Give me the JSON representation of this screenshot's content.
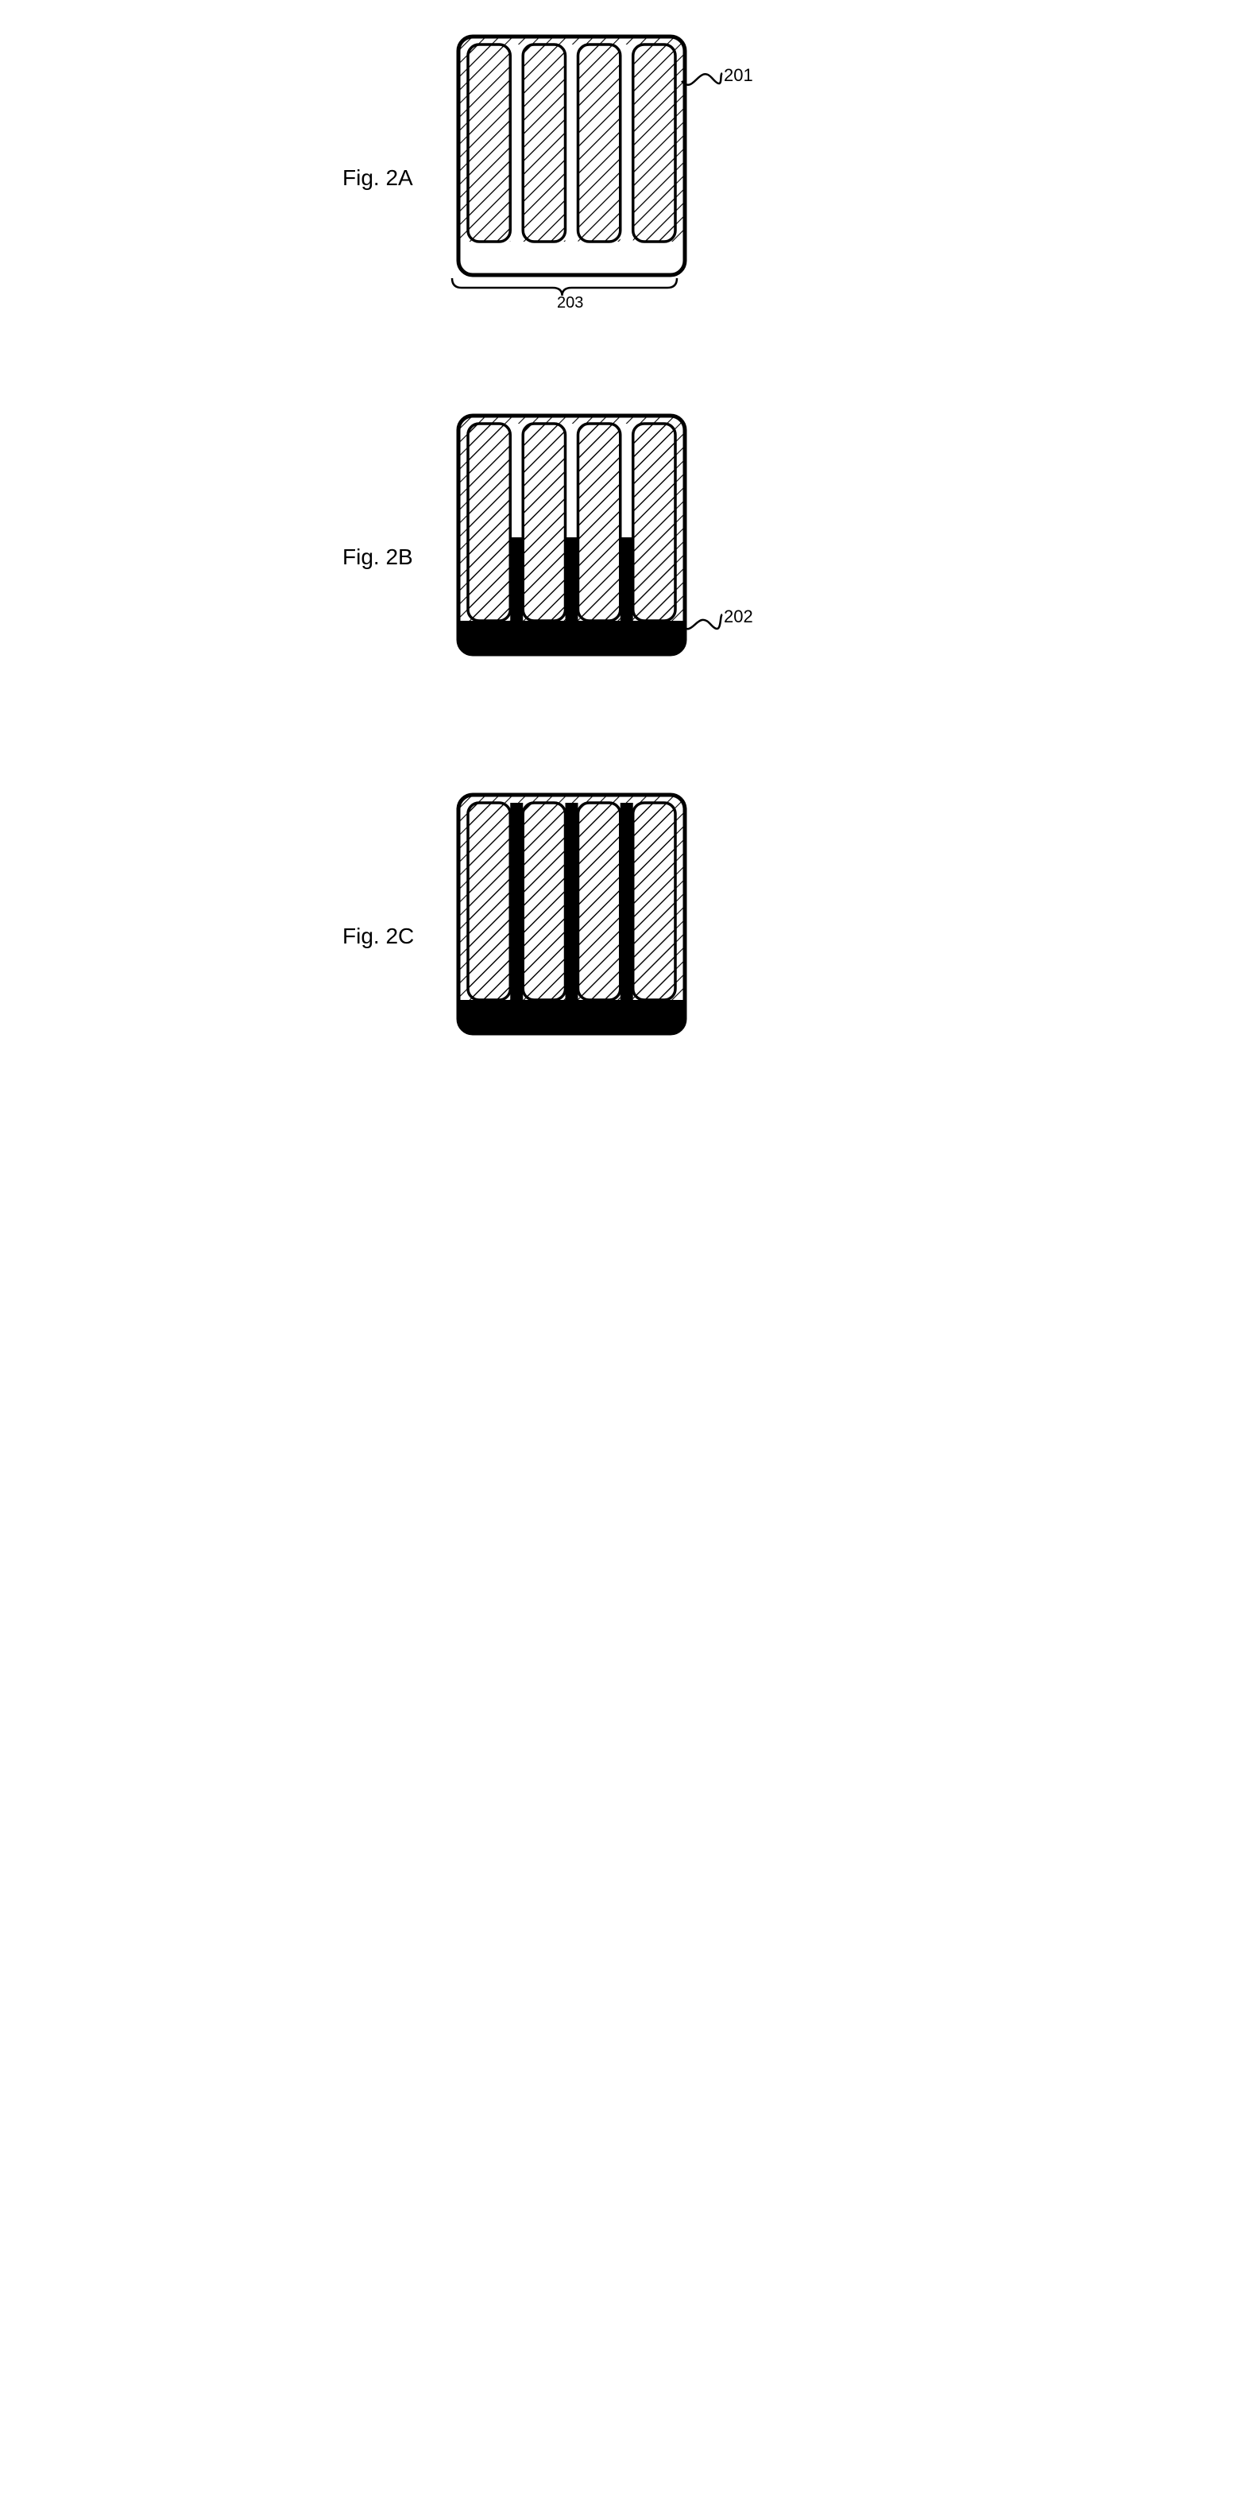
{
  "figures": {
    "A": {
      "label": "Fig. 2A",
      "leadNumber": "201",
      "bracketNumber": "203",
      "outlineStroke": "#000000",
      "outlineFill": "#ffffff",
      "hatchColor": "#000000",
      "panelWidth": 285,
      "panelHeight": 300,
      "cornerRadius": 18,
      "slotCount": 4,
      "slotTopMargin": 10,
      "slotBottomMargin": 42,
      "slotSideMargin": 12,
      "slotGap": 16,
      "slotCornerRadius": 14,
      "hasFill": false
    },
    "B": {
      "label": "Fig. 2B",
      "leadNumber": "202",
      "outlineStroke": "#000000",
      "outlineFill": "#ffffff",
      "hatchColor": "#000000",
      "fillColor": "#000000",
      "panelWidth": 285,
      "panelHeight": 300,
      "cornerRadius": 18,
      "slotCount": 4,
      "slotTopMargin": 10,
      "slotBottomMargin": 42,
      "slotSideMargin": 12,
      "slotGap": 16,
      "slotCornerRadius": 14,
      "hasFill": true,
      "fillHeightInSlot": 105,
      "baseFillHeight": 42
    },
    "C": {
      "label": "Fig. 2C",
      "outlineStroke": "#000000",
      "outlineFill": "#ffffff",
      "hatchColor": "#000000",
      "fillColor": "#000000",
      "panelWidth": 285,
      "panelHeight": 300,
      "cornerRadius": 18,
      "slotCount": 4,
      "slotTopMargin": 10,
      "slotBottomMargin": 42,
      "slotSideMargin": 12,
      "slotGap": 16,
      "slotCornerRadius": 14,
      "hasFill": true,
      "fillHeightInSlot": 248,
      "baseFillHeight": 42
    }
  },
  "hatch": {
    "spacing": 12,
    "strokeWidth": 2.2,
    "angle": 45
  },
  "stroke": {
    "outer": 5,
    "inner": 3.5
  }
}
